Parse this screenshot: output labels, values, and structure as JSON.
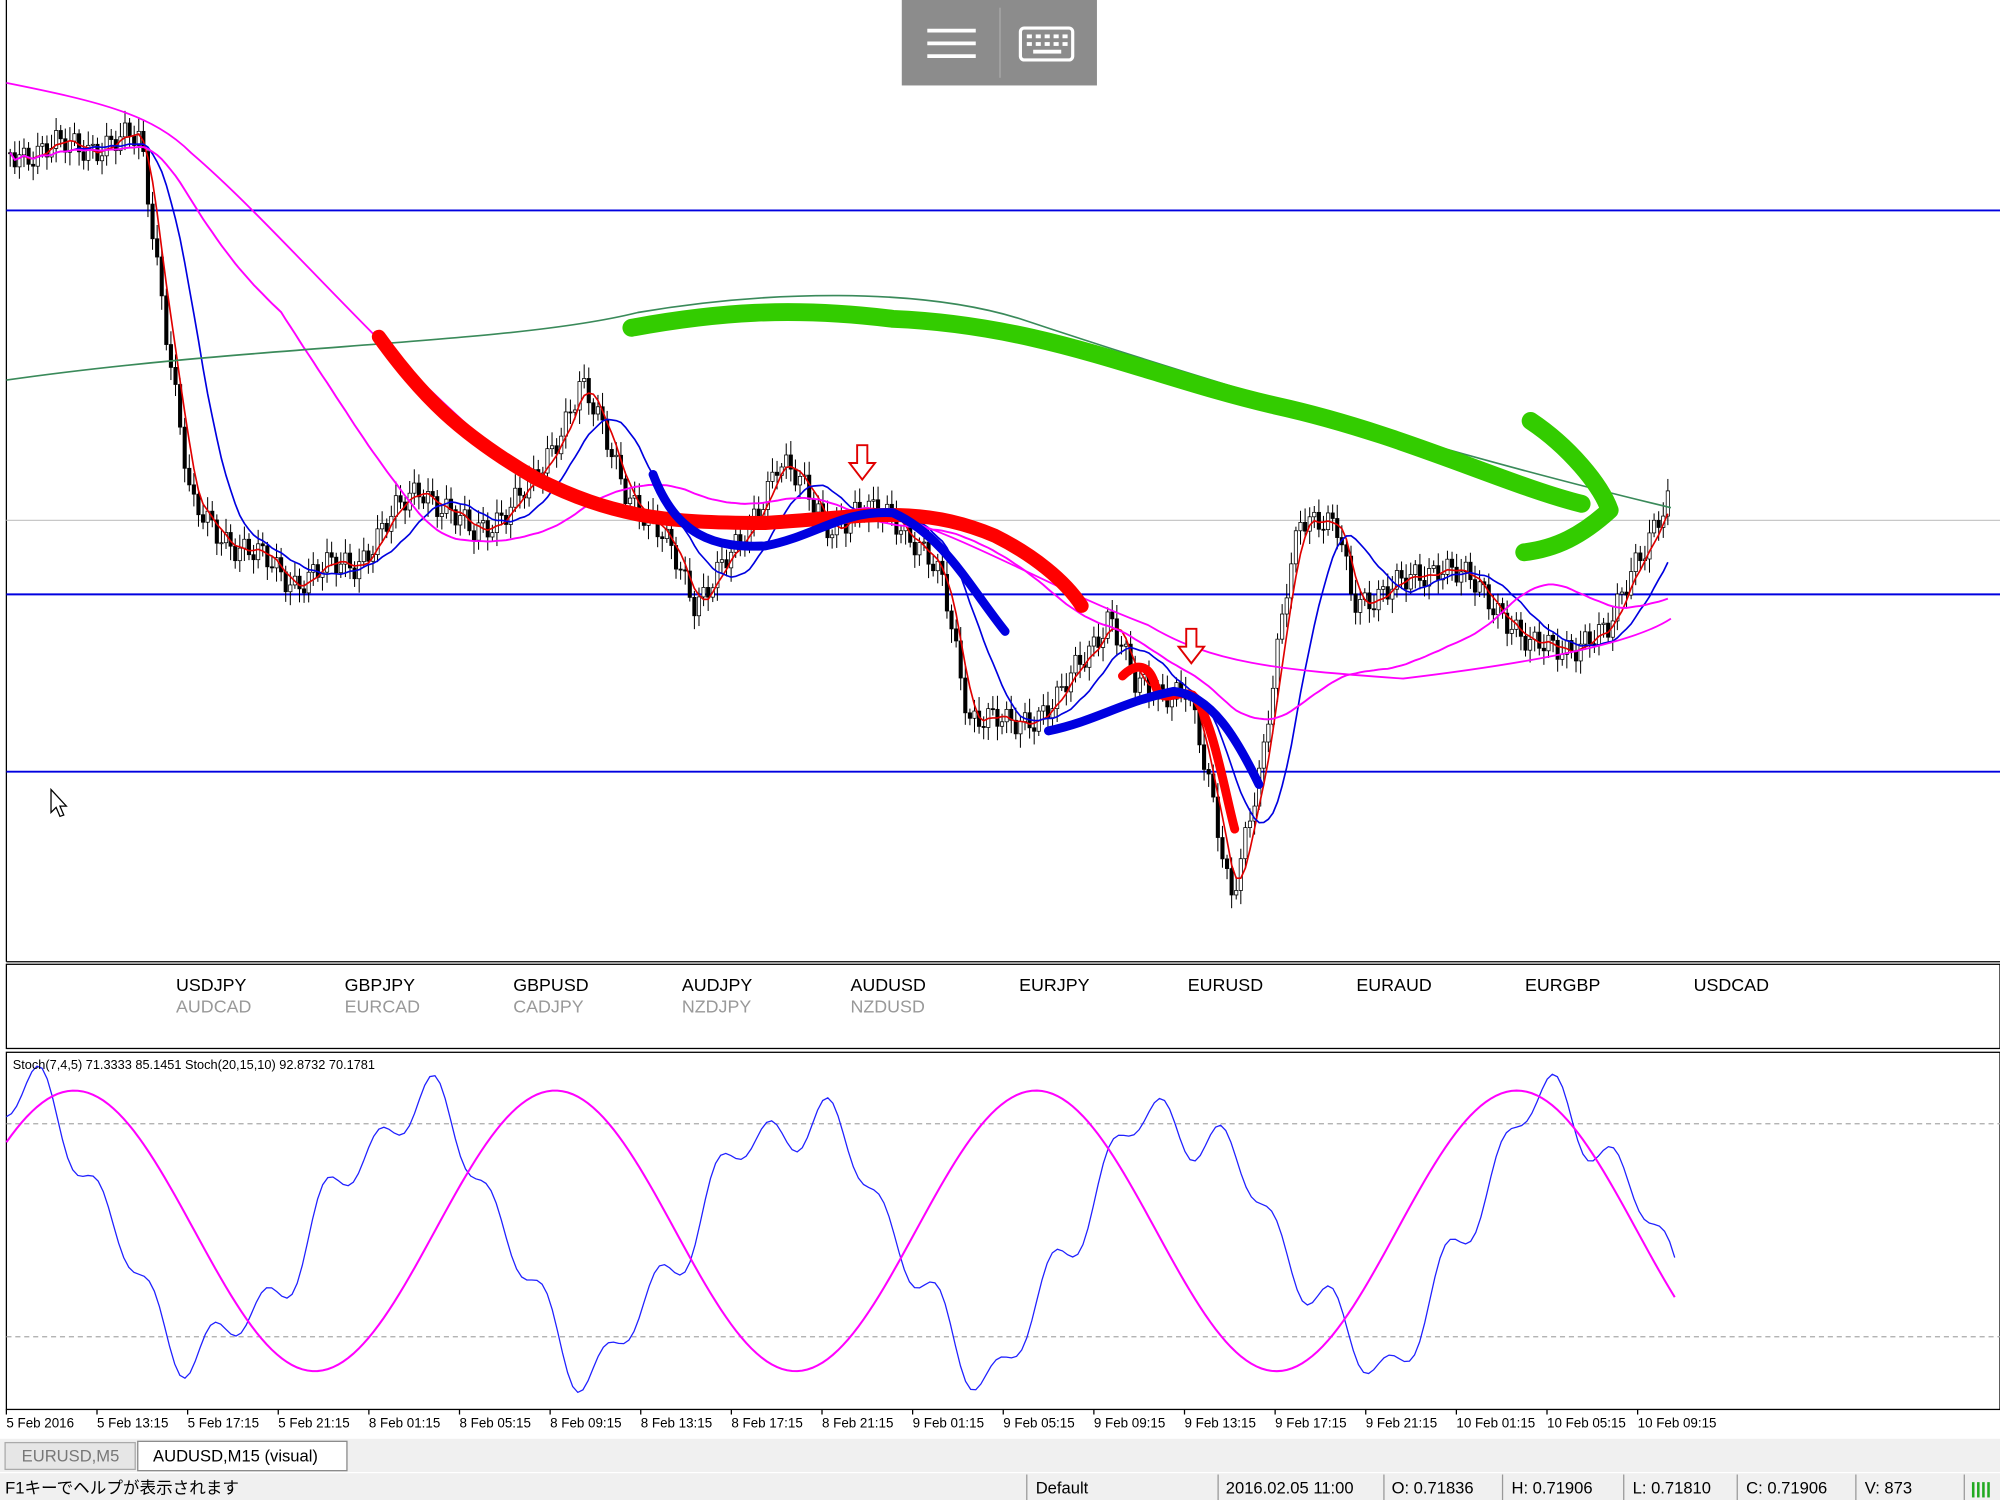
{
  "symbols": [
    {
      "top": "USDJPY",
      "bottom": "AUDCAD"
    },
    {
      "top": "GBPJPY",
      "bottom": "EURCAD"
    },
    {
      "top": "GBPUSD",
      "bottom": "CADJPY"
    },
    {
      "top": "AUDJPY",
      "bottom": "NZDJPY"
    },
    {
      "top": "AUDUSD",
      "bottom": "NZDUSD"
    },
    {
      "top": "EURJPY"
    },
    {
      "top": "EURUSD"
    },
    {
      "top": "EURAUD"
    },
    {
      "top": "EURGBP"
    },
    {
      "top": "USDCAD"
    }
  ],
  "indicator_label": "Stoch(7,4,5) 71.3333 85.1451  Stoch(20,15,10) 92.8732 70.1781",
  "time_axis": [
    "5 Feb 2016",
    "5 Feb 13:15",
    "5 Feb 17:15",
    "5 Feb 21:15",
    "8 Feb 01:15",
    "8 Feb 05:15",
    "8 Feb 09:15",
    "8 Feb 13:15",
    "8 Feb 17:15",
    "8 Feb 21:15",
    "9 Feb 01:15",
    "9 Feb 05:15",
    "9 Feb 09:15",
    "9 Feb 13:15",
    "9 Feb 17:15",
    "9 Feb 21:15",
    "10 Feb 01:15",
    "10 Feb 05:15",
    "10 Feb 09:15"
  ],
  "tabs": [
    "EURUSD,M5",
    "AUDUSD,M15 (visual)"
  ],
  "status_bar": {
    "help": "F1キーでヘルプが表示されます",
    "profile": "Default",
    "time": "2016.02.05 11:00",
    "open": "O: 0.71836",
    "high": "H: 0.71906",
    "low": "L: 0.71810",
    "close": "C: 0.71906",
    "volume": "V: 873"
  }
}
